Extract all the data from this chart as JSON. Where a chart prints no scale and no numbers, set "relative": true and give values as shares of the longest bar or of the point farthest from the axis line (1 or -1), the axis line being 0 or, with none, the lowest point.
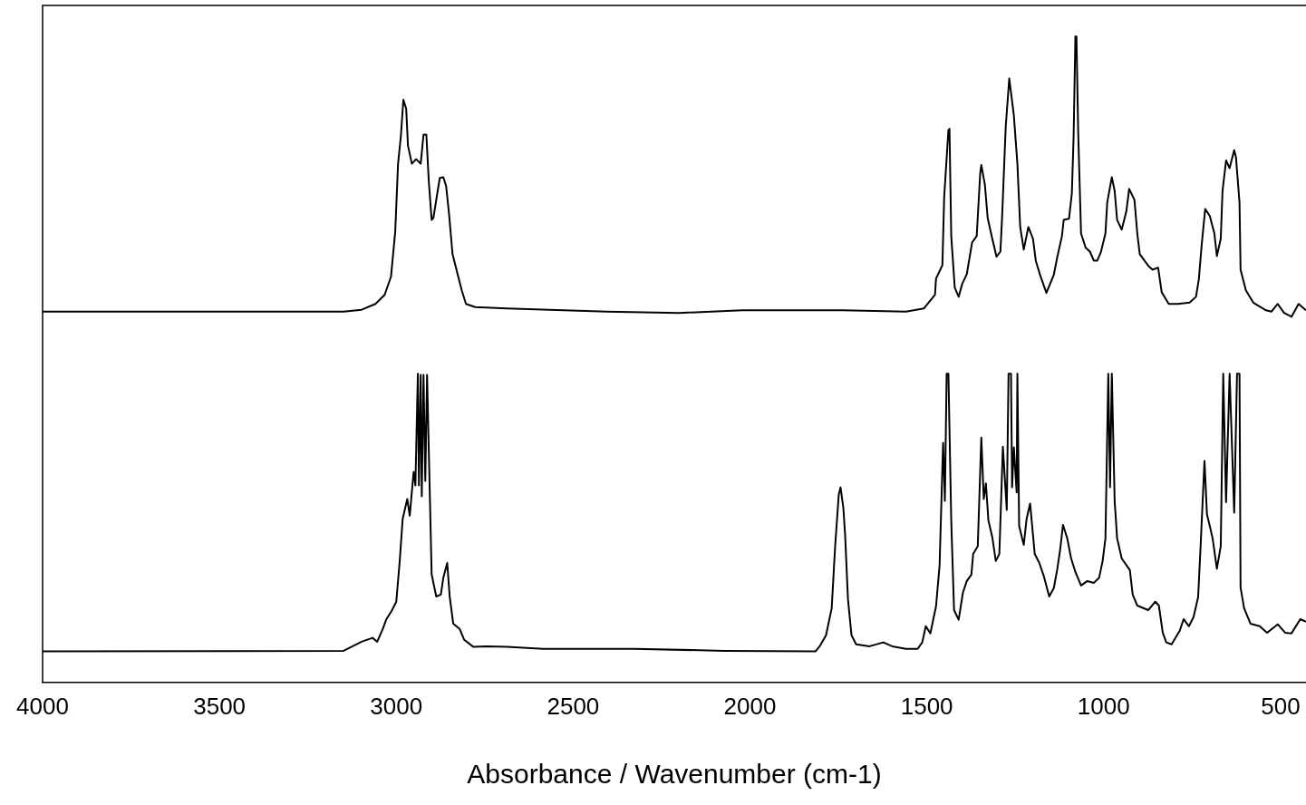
{
  "chart_data": {
    "type": "line",
    "xlabel": "Absorbance / Wavenumber (cm-1)",
    "relative": true,
    "marker": "none",
    "xlim": [
      4000,
      428
    ],
    "xticks": [
      4000,
      3500,
      3000,
      2500,
      2000,
      1500,
      1000,
      500
    ],
    "series": [
      {
        "color": "#000000",
        "x": [
          4000,
          3149,
          3098,
          3059,
          3033,
          3015,
          3003,
          2995,
          2987,
          2980,
          2972,
          2967,
          2956,
          2944,
          2931,
          2923,
          2915,
          2908,
          2900,
          2895,
          2885,
          2877,
          2867,
          2859,
          2851,
          2841,
          2828,
          2815,
          2803,
          2777,
          2687,
          2405,
          2200,
          2021,
          1739,
          1559,
          1508,
          1477,
          1474,
          1456,
          1451,
          1439,
          1436,
          1431,
          1421,
          1410,
          1400,
          1387,
          1372,
          1359,
          1349,
          1346,
          1336,
          1328,
          1315,
          1303,
          1292,
          1287,
          1277,
          1267,
          1254,
          1244,
          1236,
          1226,
          1213,
          1200,
          1192,
          1180,
          1162,
          1141,
          1131,
          1118,
          1113,
          1098,
          1090,
          1085,
          1080,
          1077,
          1072,
          1064,
          1051,
          1039,
          1028,
          1018,
          1008,
          995,
          990,
          977,
          969,
          962,
          949,
          936,
          928,
          913,
          905,
          898,
          874,
          862,
          846,
          836,
          816,
          790,
          757,
          739,
          731,
          723,
          713,
          700,
          687,
          680,
          669,
          664,
          654,
          644,
          631,
          626,
          616,
          613,
          598,
          577,
          541,
          526,
          508,
          490,
          469,
          449,
          428
        ],
        "values": [
          0.574,
          0.574,
          0.577,
          0.586,
          0.6,
          0.628,
          0.698,
          0.803,
          0.846,
          0.902,
          0.888,
          0.831,
          0.803,
          0.81,
          0.803,
          0.848,
          0.848,
          0.775,
          0.716,
          0.719,
          0.754,
          0.781,
          0.782,
          0.768,
          0.726,
          0.663,
          0.635,
          0.607,
          0.586,
          0.581,
          0.579,
          0.574,
          0.572,
          0.576,
          0.576,
          0.574,
          0.579,
          0.6,
          0.625,
          0.646,
          0.751,
          0.855,
          0.857,
          0.691,
          0.611,
          0.597,
          0.617,
          0.632,
          0.681,
          0.691,
          0.789,
          0.801,
          0.771,
          0.719,
          0.687,
          0.659,
          0.667,
          0.723,
          0.86,
          0.935,
          0.878,
          0.803,
          0.705,
          0.67,
          0.705,
          0.687,
          0.653,
          0.631,
          0.603,
          0.631,
          0.659,
          0.691,
          0.716,
          0.718,
          0.757,
          0.846,
          1.0,
          1.0,
          0.85,
          0.695,
          0.673,
          0.667,
          0.653,
          0.653,
          0.666,
          0.695,
          0.743,
          0.782,
          0.761,
          0.716,
          0.701,
          0.729,
          0.764,
          0.747,
          0.695,
          0.663,
          0.645,
          0.639,
          0.642,
          0.604,
          0.586,
          0.586,
          0.588,
          0.597,
          0.624,
          0.677,
          0.733,
          0.722,
          0.695,
          0.66,
          0.687,
          0.761,
          0.808,
          0.796,
          0.824,
          0.813,
          0.743,
          0.639,
          0.607,
          0.588,
          0.576,
          0.574,
          0.586,
          0.572,
          0.566,
          0.586,
          0.576
        ]
      },
      {
        "color": "#000000",
        "x": [
          4000,
          3149,
          3098,
          3067,
          3054,
          3038,
          3028,
          3013,
          3000,
          2990,
          2982,
          2969,
          2962,
          2951,
          2946,
          2939,
          2936,
          2931,
          2928,
          2923,
          2918,
          2913,
          2900,
          2887,
          2874,
          2867,
          2856,
          2849,
          2839,
          2821,
          2808,
          2782,
          2746,
          2687,
          2585,
          2328,
          2072,
          1815,
          1803,
          1785,
          1769,
          1759,
          1749,
          1744,
          1736,
          1731,
          1723,
          1713,
          1700,
          1662,
          1623,
          1598,
          1559,
          1526,
          1513,
          1503,
          1490,
          1474,
          1464,
          1454,
          1449,
          1444,
          1439,
          1431,
          1423,
          1410,
          1398,
          1387,
          1374,
          1369,
          1356,
          1346,
          1339,
          1333,
          1326,
          1315,
          1305,
          1295,
          1285,
          1274,
          1269,
          1262,
          1259,
          1254,
          1246,
          1244,
          1239,
          1226,
          1218,
          1208,
          1195,
          1182,
          1169,
          1154,
          1141,
          1131,
          1123,
          1115,
          1103,
          1092,
          1080,
          1064,
          1046,
          1028,
          1013,
          1003,
          995,
          987,
          982,
          977,
          969,
          962,
          949,
          926,
          918,
          905,
          874,
          854,
          844,
          833,
          823,
          808,
          785,
          774,
          759,
          746,
          733,
          726,
          715,
          708,
          700,
          692,
          680,
          669,
          662,
          654,
          644,
          631,
          623,
          616,
          613,
          603,
          585,
          559,
          538,
          508,
          487,
          469,
          444,
          428
        ],
        "values": [
          0.048,
          0.049,
          0.063,
          0.069,
          0.063,
          0.083,
          0.098,
          0.111,
          0.125,
          0.19,
          0.253,
          0.284,
          0.258,
          0.326,
          0.305,
          0.478,
          0.305,
          0.476,
          0.288,
          0.476,
          0.312,
          0.476,
          0.167,
          0.133,
          0.136,
          0.162,
          0.185,
          0.133,
          0.091,
          0.083,
          0.066,
          0.055,
          0.056,
          0.055,
          0.052,
          0.052,
          0.049,
          0.048,
          0.056,
          0.073,
          0.115,
          0.213,
          0.291,
          0.302,
          0.27,
          0.228,
          0.129,
          0.073,
          0.059,
          0.056,
          0.062,
          0.056,
          0.052,
          0.052,
          0.062,
          0.087,
          0.076,
          0.118,
          0.181,
          0.371,
          0.281,
          0.478,
          0.478,
          0.251,
          0.112,
          0.097,
          0.139,
          0.157,
          0.167,
          0.199,
          0.211,
          0.379,
          0.284,
          0.308,
          0.251,
          0.225,
          0.188,
          0.199,
          0.365,
          0.267,
          0.478,
          0.478,
          0.302,
          0.364,
          0.294,
          0.478,
          0.242,
          0.213,
          0.253,
          0.277,
          0.199,
          0.185,
          0.164,
          0.133,
          0.146,
          0.176,
          0.206,
          0.244,
          0.223,
          0.192,
          0.171,
          0.15,
          0.157,
          0.154,
          0.162,
          0.188,
          0.223,
          0.478,
          0.302,
          0.478,
          0.281,
          0.223,
          0.192,
          0.174,
          0.136,
          0.119,
          0.112,
          0.125,
          0.119,
          0.077,
          0.062,
          0.059,
          0.08,
          0.098,
          0.087,
          0.101,
          0.132,
          0.211,
          0.343,
          0.26,
          0.242,
          0.223,
          0.176,
          0.211,
          0.478,
          0.279,
          0.478,
          0.263,
          0.478,
          0.478,
          0.147,
          0.115,
          0.091,
          0.087,
          0.077,
          0.09,
          0.077,
          0.076,
          0.098,
          0.094
        ]
      }
    ]
  }
}
